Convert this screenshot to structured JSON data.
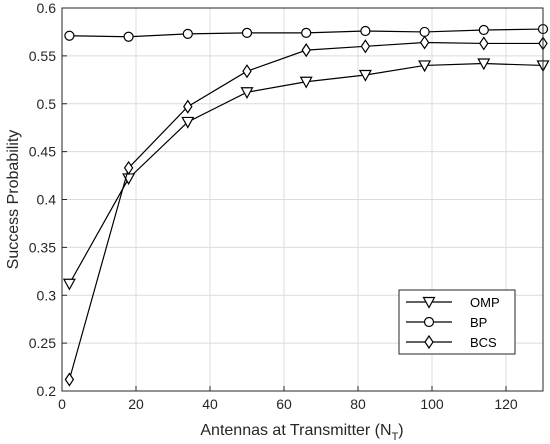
{
  "chart_data": {
    "type": "line",
    "xlabel": "Antennas at Transmitter (N",
    "xlabel_sub": "T",
    "xlabel_end": ")",
    "ylabel": "Success Probability",
    "xlim": [
      0,
      130
    ],
    "ylim": [
      0.2,
      0.6
    ],
    "xticks": [
      0,
      20,
      40,
      60,
      80,
      100,
      120
    ],
    "yticks": [
      0.2,
      0.25,
      0.3,
      0.35,
      0.4,
      0.45,
      0.5,
      0.55,
      0.6
    ],
    "ytick_labels": [
      "0.2",
      "0.25",
      "0.3",
      "0.35",
      "0.4",
      "0.45",
      "0.5",
      "0.55",
      "0.6"
    ],
    "grid": true,
    "legend_position": "lower-right",
    "x": [
      2,
      18,
      34,
      50,
      66,
      82,
      98,
      114,
      130
    ],
    "series": [
      {
        "name": "OMP",
        "marker": "triangle-down",
        "color": "#000000",
        "values": [
          0.312,
          0.422,
          0.481,
          0.512,
          0.523,
          0.53,
          0.54,
          0.542,
          0.54
        ]
      },
      {
        "name": "BP",
        "marker": "circle",
        "color": "#000000",
        "values": [
          0.571,
          0.57,
          0.573,
          0.574,
          0.574,
          0.576,
          0.575,
          0.577,
          0.578
        ]
      },
      {
        "name": "BCS",
        "marker": "diamond",
        "color": "#000000",
        "values": [
          0.212,
          0.433,
          0.497,
          0.534,
          0.556,
          0.56,
          0.564,
          0.563,
          0.563
        ]
      }
    ]
  }
}
